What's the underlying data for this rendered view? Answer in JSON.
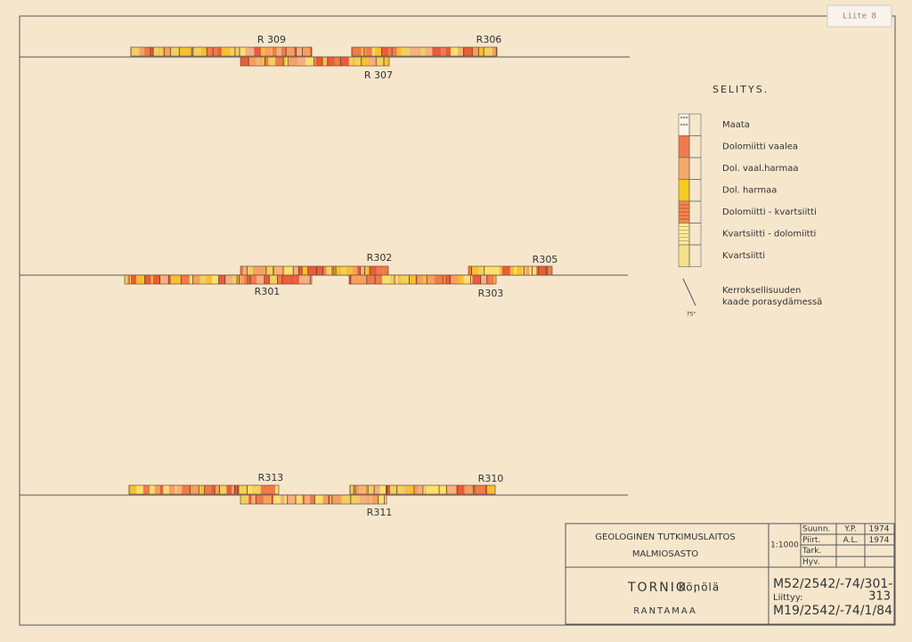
{
  "header": {
    "sheet_label": "Liite 8"
  },
  "sections": [
    {
      "holes": [
        "R 309",
        "R306",
        "R 307"
      ]
    },
    {
      "holes": [
        "R302",
        "R305",
        "R301",
        "R303"
      ]
    },
    {
      "holes": [
        "R313",
        "R310",
        "R311"
      ]
    }
  ],
  "legend": {
    "title": "SELITYS.",
    "items": [
      "Maata",
      "Dolomiitti vaalea",
      "Dol. vaal.harmaa",
      "Dol. harmaa",
      "Dolomiitti - kvartsiitti",
      "Kvartsiitti - dolomiitti",
      "Kvartsiitti"
    ],
    "dip_note": [
      "Kerroksellisuuden",
      "kaade porasydämessä"
    ],
    "dip_angle": "75°"
  },
  "title_block": {
    "institution": "GEOLOGINEN TUTKIMUSLAITOS",
    "department": "MALMIOSASTO",
    "scale": "1:1000",
    "rows": [
      [
        "Suunn.",
        "Y.P.",
        "1974"
      ],
      [
        "Piirt.",
        "A.L.",
        "1974"
      ],
      [
        "Tark.",
        "",
        ""
      ],
      [
        "Hyv.",
        "",
        ""
      ]
    ],
    "place": "TORNIO ,",
    "locality": "Könölä",
    "area": "RANTAMAA",
    "map_no": [
      "M52/2542/-74/301-",
      "313"
    ],
    "related_label": "Liittyy:",
    "related_no": "M19/2542/-74/1/84"
  }
}
